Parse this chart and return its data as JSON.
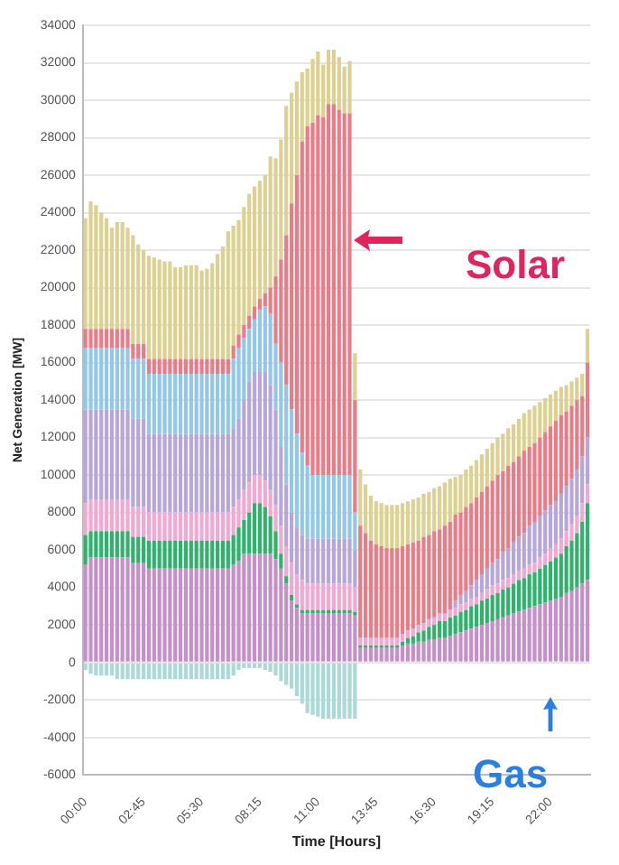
{
  "chart_data": {
    "type": "bar",
    "stacked": true,
    "xlabel": "Time [Hours]",
    "ylabel": "Net Generation [MW]",
    "categories": [
      "00:00",
      null,
      null,
      null,
      null,
      null,
      null,
      null,
      null,
      null,
      null,
      "02:45",
      null,
      null,
      null,
      null,
      null,
      null,
      null,
      null,
      null,
      null,
      "05:30",
      null,
      null,
      null,
      null,
      null,
      null,
      null,
      null,
      null,
      null,
      "08:15",
      null,
      null,
      null,
      null,
      null,
      null,
      null,
      null,
      null,
      null,
      "11:00",
      null,
      null,
      null,
      null,
      null,
      null,
      null,
      null,
      null,
      null,
      "13:45",
      null,
      null,
      null,
      null,
      null,
      null,
      null,
      null,
      null,
      null,
      "16:30",
      null,
      null,
      null,
      null,
      null,
      null,
      null,
      null,
      null,
      null,
      "19:15",
      null,
      null,
      null,
      null,
      null,
      null,
      null,
      null,
      null,
      null,
      "22:00",
      null,
      null,
      null,
      null,
      null,
      null,
      null
    ],
    "series": [
      {
        "color": "#c590c9",
        "values": [
          5200,
          5600,
          5600,
          5600,
          5600,
          5600,
          5600,
          5600,
          5600,
          5300,
          5300,
          5300,
          5000,
          5000,
          5000,
          5000,
          5000,
          5000,
          5000,
          5000,
          5000,
          5000,
          5000,
          5000,
          5000,
          5000,
          5000,
          5000,
          5200,
          5400,
          5800,
          5800,
          5800,
          5800,
          5800,
          5800,
          5500,
          5000,
          4200,
          3300,
          2900,
          2600,
          2600,
          2600,
          2600,
          2600,
          2600,
          2600,
          2600,
          2600,
          2600,
          2500,
          800,
          800,
          800,
          800,
          800,
          800,
          800,
          800,
          900,
          1000,
          1000,
          1100,
          1100,
          1200,
          1200,
          1300,
          1300,
          1400,
          1500,
          1600,
          1700,
          1800,
          1900,
          2000,
          2100,
          2200,
          2300,
          2400,
          2500,
          2600,
          2700,
          2800,
          2900,
          3000,
          3100,
          3200,
          3300,
          3400,
          3500,
          3700,
          3800,
          4000,
          4200,
          4400
        ]
      },
      {
        "color": "#2fb36c",
        "values": [
          1600,
          1400,
          1400,
          1400,
          1400,
          1400,
          1400,
          1400,
          1400,
          1400,
          1400,
          1400,
          1500,
          1500,
          1500,
          1500,
          1500,
          1500,
          1500,
          1500,
          1500,
          1500,
          1500,
          1500,
          1500,
          1500,
          1500,
          1500,
          1600,
          1800,
          1800,
          2200,
          2700,
          2700,
          2500,
          2000,
          1500,
          800,
          400,
          300,
          200,
          200,
          200,
          200,
          200,
          200,
          200,
          200,
          200,
          200,
          200,
          200,
          100,
          100,
          100,
          100,
          100,
          100,
          100,
          100,
          200,
          300,
          400,
          500,
          600,
          700,
          800,
          900,
          900,
          1000,
          1000,
          1100,
          1100,
          1200,
          1200,
          1300,
          1300,
          1400,
          1400,
          1500,
          1500,
          1600,
          1700,
          1700,
          1800,
          1800,
          1900,
          2000,
          2100,
          2200,
          2300,
          2500,
          2700,
          2900,
          3300,
          4100
        ]
      },
      {
        "color": "#f3a8d2",
        "values": [
          1700,
          1700,
          1700,
          1700,
          1700,
          1700,
          1700,
          1700,
          1700,
          1600,
          1600,
          1600,
          1500,
          1500,
          1500,
          1500,
          1500,
          1500,
          1500,
          1500,
          1500,
          1500,
          1500,
          1500,
          1500,
          1500,
          1500,
          1500,
          1500,
          1500,
          1600,
          1600,
          1500,
          1500,
          1400,
          1400,
          1400,
          1500,
          1600,
          1700,
          1600,
          1600,
          1400,
          1400,
          1400,
          1400,
          1400,
          1400,
          1400,
          1400,
          1400,
          1300,
          400,
          400,
          400,
          400,
          400,
          400,
          400,
          400,
          400,
          400,
          400,
          400,
          400,
          400,
          400,
          400,
          400,
          400,
          400,
          400,
          400,
          400,
          400,
          400,
          500,
          500,
          500,
          500,
          500,
          500,
          500,
          500,
          500,
          500,
          600,
          600,
          700,
          700,
          800,
          800,
          900,
          900,
          1000,
          1000
        ]
      },
      {
        "color": "#b7a6d9",
        "values": [
          5000,
          4800,
          4800,
          4800,
          4800,
          4800,
          4800,
          4800,
          4800,
          4700,
          4700,
          4700,
          4200,
          4200,
          4200,
          4200,
          4200,
          4200,
          4200,
          4200,
          4200,
          4200,
          4200,
          4200,
          4200,
          4200,
          4200,
          4200,
          4200,
          4300,
          4800,
          5400,
          5500,
          5500,
          5800,
          5600,
          5100,
          4200,
          3300,
          2700,
          2500,
          2400,
          2400,
          2400,
          2400,
          2400,
          2400,
          2400,
          2400,
          2400,
          2400,
          2000,
          null,
          null,
          null,
          null,
          null,
          null,
          null,
          null,
          null,
          null,
          null,
          null,
          null,
          null,
          null,
          null,
          null,
          null,
          400,
          500,
          600,
          700,
          900,
          1000,
          1100,
          1200,
          1300,
          1500,
          1600,
          1700,
          1800,
          1900,
          2100,
          2200,
          2200,
          2300,
          2300,
          2300,
          2400,
          2400,
          2400,
          2500,
          2500,
          2500
        ]
      },
      {
        "color": "#92c7ea",
        "values": [
          3300,
          3300,
          3300,
          3300,
          3300,
          3300,
          3300,
          3300,
          3300,
          3200,
          3200,
          3200,
          3200,
          3200,
          3200,
          3200,
          3200,
          3200,
          3200,
          3200,
          3200,
          3200,
          3200,
          3200,
          3200,
          3200,
          3200,
          3200,
          3700,
          3800,
          3300,
          2800,
          2800,
          3300,
          3500,
          3800,
          3500,
          4500,
          5300,
          5500,
          5000,
          4400,
          3900,
          3400,
          3400,
          3400,
          3400,
          3400,
          3400,
          3400,
          3400,
          2000,
          null,
          null,
          null,
          null,
          null,
          null,
          null,
          null,
          null,
          null,
          null,
          null,
          null,
          null,
          null,
          null,
          null,
          null,
          null,
          null,
          null,
          null,
          null,
          null,
          null,
          null,
          null,
          null,
          null,
          null,
          null,
          null,
          null,
          null,
          null,
          null,
          null,
          null,
          null,
          null,
          null,
          null,
          null,
          null
        ]
      },
      {
        "color": "#eb7c87",
        "values": [
          1000,
          1000,
          1000,
          1000,
          1000,
          1000,
          1000,
          1000,
          1000,
          800,
          800,
          800,
          800,
          800,
          800,
          800,
          800,
          800,
          800,
          800,
          800,
          800,
          800,
          800,
          800,
          800,
          800,
          800,
          700,
          700,
          700,
          700,
          700,
          600,
          700,
          1400,
          3600,
          5500,
          8000,
          11000,
          13800,
          16600,
          18100,
          18800,
          19200,
          19100,
          19800,
          19800,
          19500,
          19300,
          19300,
          6000,
          6000,
          5600,
          5200,
          5000,
          4900,
          4800,
          4800,
          4800,
          4700,
          4600,
          4600,
          4500,
          4600,
          4500,
          4600,
          4500,
          4700,
          4700,
          4600,
          4400,
          4500,
          4400,
          4400,
          4400,
          4400,
          4400,
          4500,
          4300,
          4400,
          4300,
          4300,
          4400,
          4200,
          4200,
          4200,
          4200,
          4200,
          4300,
          4200,
          4000,
          3900,
          3700,
          3200,
          4000
        ]
      },
      {
        "color": "#dcd192",
        "values": [
          5900,
          6800,
          6600,
          6200,
          5900,
          5400,
          5700,
          5700,
          5400,
          5800,
          5300,
          5000,
          5500,
          5400,
          5300,
          5200,
          5200,
          4900,
          4900,
          5000,
          5000,
          5000,
          4700,
          4800,
          5100,
          5600,
          6000,
          6800,
          6400,
          6100,
          6300,
          6500,
          6400,
          6300,
          6300,
          7000,
          6300,
          6400,
          6900,
          5900,
          5000,
          3700,
          3100,
          3400,
          3400,
          2800,
          2900,
          2900,
          2800,
          2500,
          2800,
          2500,
          3000,
          2600,
          2400,
          2300,
          2300,
          2300,
          2300,
          2300,
          2300,
          2300,
          2300,
          2300,
          2300,
          2300,
          2300,
          2300,
          2300,
          2300,
          2000,
          2000,
          2000,
          2000,
          2000,
          2000,
          2000,
          2000,
          2000,
          2000,
          2000,
          2000,
          2000,
          2000,
          2000,
          2000,
          1900,
          1800,
          1700,
          1600,
          1500,
          1400,
          1300,
          1200,
          1200,
          1800
        ]
      },
      {
        "color": "#aad9d7",
        "values": [
          -400,
          -600,
          -700,
          -700,
          -700,
          -700,
          -900,
          -900,
          -900,
          -900,
          -900,
          -900,
          -900,
          -900,
          -900,
          -900,
          -900,
          -900,
          -900,
          -900,
          -900,
          -900,
          -900,
          -900,
          -900,
          -900,
          -900,
          -900,
          -700,
          -400,
          -300,
          -300,
          -300,
          -300,
          -400,
          -500,
          -700,
          -1000,
          -1200,
          -1400,
          -1800,
          -2200,
          -2700,
          -2800,
          -2900,
          -3000,
          -3000,
          -3000,
          -3000,
          -3000,
          -3000,
          -3000,
          null,
          null,
          null,
          null,
          null,
          null,
          null,
          null,
          null,
          null,
          null,
          null,
          null,
          null,
          null,
          null,
          null,
          null,
          null,
          null,
          null,
          null,
          null,
          null,
          null,
          null,
          null,
          null,
          null,
          null,
          null,
          null,
          null,
          null,
          null,
          null,
          null,
          null,
          null,
          null,
          null,
          null,
          null,
          null
        ]
      }
    ],
    "ylim": [
      -6000,
      34000
    ],
    "yticks": [
      -6000,
      -4000,
      -2000,
      0,
      2000,
      4000,
      6000,
      8000,
      10000,
      12000,
      14000,
      16000,
      18000,
      20000,
      22000,
      24000,
      26000,
      28000,
      30000,
      32000,
      34000
    ],
    "grid": "y",
    "legend": false,
    "annotations": [
      "Solar",
      "Gas"
    ]
  }
}
